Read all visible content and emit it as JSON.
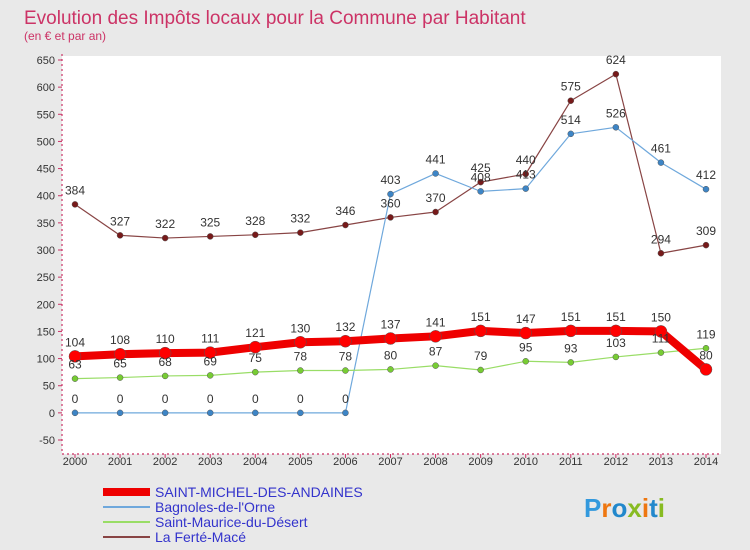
{
  "chart_data": {
    "type": "line",
    "title": "Evolution des Impôts locaux pour la Commune par Habitant",
    "subtitle": "(en € et par an)",
    "xlabel": "",
    "ylabel": "",
    "ylim": [
      -50,
      650
    ],
    "y_ticks": [
      -50,
      0,
      50,
      100,
      150,
      200,
      250,
      300,
      350,
      400,
      450,
      500,
      550,
      600,
      650
    ],
    "categories": [
      "2000",
      "2001",
      "2002",
      "2003",
      "2004",
      "2005",
      "2006",
      "2007",
      "2008",
      "2009",
      "2010",
      "2011",
      "2012",
      "2013",
      "2014"
    ],
    "series": [
      {
        "name": "SAINT-MICHEL-DES-ANDAINES",
        "color": "#ee0000",
        "width": 8,
        "marker": "#ff0000",
        "values": [
          104,
          108,
          110,
          111,
          121,
          130,
          132,
          137,
          141,
          151,
          147,
          151,
          151,
          150,
          80
        ]
      },
      {
        "name": "Bagnoles-de-l'Orne",
        "color": "#6fa8dc",
        "width": 1.2,
        "marker": "#3d85c6",
        "values": [
          0,
          0,
          0,
          0,
          0,
          0,
          0,
          403,
          441,
          408,
          413,
          514,
          526,
          461,
          412
        ]
      },
      {
        "name": "Saint-Maurice-du-Désert",
        "color": "#99dd66",
        "width": 1.2,
        "marker": "#77cc33",
        "values": [
          63,
          65,
          68,
          69,
          75,
          78,
          78,
          80,
          87,
          79,
          95,
          93,
          103,
          111,
          119
        ]
      },
      {
        "name": "La Ferté-Macé",
        "color": "#884444",
        "width": 1.2,
        "marker": "#771a1a",
        "values": [
          384,
          327,
          322,
          325,
          328,
          332,
          346,
          360,
          370,
          425,
          440,
          575,
          624,
          294,
          309
        ]
      }
    ],
    "legend_position": "bottom-left",
    "grid": false
  },
  "brand": {
    "letters": [
      "P",
      "r",
      "o",
      "x",
      "i",
      "t",
      "i"
    ],
    "colors": [
      "#3399dd",
      "#ee7711",
      "#2288cc",
      "#88bb22",
      "#ee7711",
      "#2288cc",
      "#88bb22"
    ]
  }
}
